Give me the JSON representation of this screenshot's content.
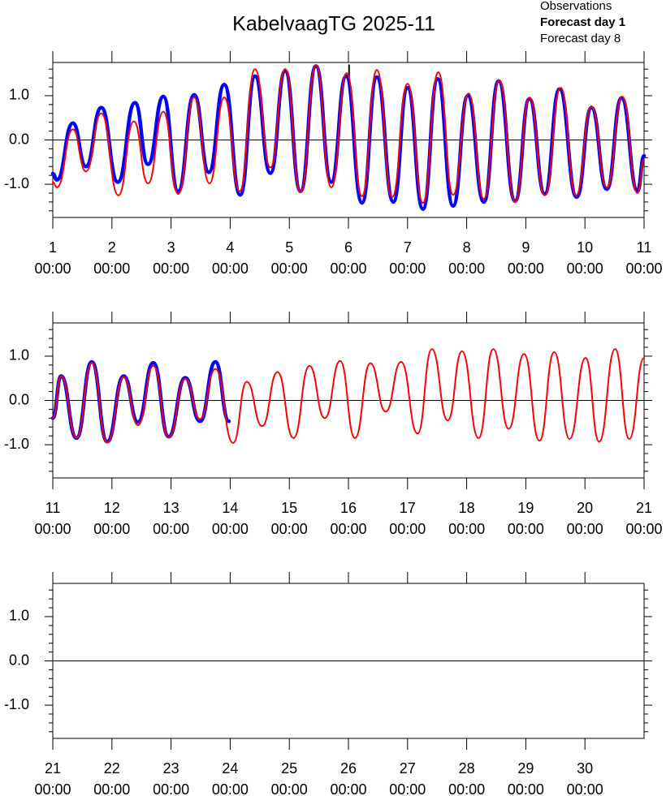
{
  "chart_data": [
    {
      "type": "line",
      "title": "KabelvaagTG 2025-11",
      "time_label": "00:00",
      "xlim": [
        1,
        11
      ],
      "xticks": [
        1,
        2,
        3,
        4,
        5,
        6,
        7,
        8,
        9,
        10,
        11
      ],
      "ylim": [
        -1.75,
        1.75
      ],
      "yticks": [
        {
          "value": -1,
          "label": "-1.0"
        },
        {
          "value": 0,
          "label": "0.0"
        },
        {
          "value": 1,
          "label": "1.0"
        }
      ],
      "yminorticks": [
        -1.6,
        -1.4,
        -1.2,
        -0.8,
        -0.6,
        -0.4,
        -0.2,
        0.2,
        0.4,
        0.6,
        0.8,
        1.2,
        1.4,
        1.6
      ],
      "zero_line": true,
      "series": [
        {
          "name": "Observations",
          "color": "#000000",
          "width": 2,
          "legend_weight": "normal",
          "x": [
            6.01,
            6.012
          ],
          "values": [
            1.69,
            1.42
          ]
        },
        {
          "name": "Forecast day 1",
          "color": "#0000ff",
          "width": 4.5,
          "legend_weight": "bold",
          "x": [
            1.0,
            1.07,
            1.34,
            1.56,
            1.82,
            2.1,
            2.39,
            2.61,
            2.87,
            3.12,
            3.39,
            3.64,
            3.9,
            4.17,
            4.42,
            4.68,
            4.93,
            5.19,
            5.45,
            5.71,
            5.96,
            6.23,
            6.48,
            6.76,
            7.0,
            7.26,
            7.51,
            7.77,
            8.02,
            8.29,
            8.54,
            8.82,
            9.06,
            9.32,
            9.57,
            9.86,
            10.11,
            10.37,
            10.62,
            10.89,
            11.0
          ],
          "values": [
            -0.76,
            -0.9,
            0.38,
            -0.6,
            0.73,
            -0.95,
            0.84,
            -0.55,
            0.98,
            -1.16,
            1.02,
            -0.73,
            1.25,
            -1.24,
            1.44,
            -0.75,
            1.56,
            -1.16,
            1.67,
            -0.95,
            1.44,
            -1.42,
            1.42,
            -1.4,
            1.18,
            -1.56,
            1.38,
            -1.49,
            1.0,
            -1.4,
            1.33,
            -1.38,
            0.93,
            -1.22,
            1.15,
            -1.29,
            0.73,
            -1.11,
            0.95,
            -1.15,
            -0.36
          ]
        },
        {
          "name": "Forecast day 8",
          "color": "#ff0000",
          "width": 2,
          "legend_weight": "normal",
          "x": [
            1.0,
            1.07,
            1.34,
            1.56,
            1.82,
            2.11,
            2.37,
            2.61,
            2.87,
            3.12,
            3.39,
            3.65,
            3.9,
            4.16,
            4.42,
            4.68,
            4.93,
            5.19,
            5.45,
            5.71,
            5.97,
            6.23,
            6.48,
            6.74,
            7.0,
            7.26,
            7.52,
            7.77,
            8.03,
            8.29,
            8.55,
            8.82,
            9.06,
            9.32,
            9.59,
            9.85,
            10.11,
            10.37,
            10.63,
            10.89,
            11.0
          ],
          "values": [
            -0.95,
            -1.07,
            0.24,
            -0.71,
            0.6,
            -1.25,
            0.42,
            -0.98,
            0.64,
            -1.22,
            0.96,
            -0.98,
            0.96,
            -1.16,
            1.6,
            -0.62,
            1.6,
            -1.18,
            1.69,
            -1.07,
            1.51,
            -1.27,
            1.58,
            -1.29,
            1.27,
            -1.42,
            1.53,
            -1.24,
            1.05,
            -1.33,
            1.35,
            -1.4,
            0.96,
            -1.25,
            1.18,
            -1.25,
            0.76,
            -1.07,
            0.98,
            -1.2,
            -0.44
          ]
        }
      ]
    },
    {
      "type": "line",
      "time_label": "00:00",
      "xlim": [
        11,
        21
      ],
      "xticks": [
        11,
        12,
        13,
        14,
        15,
        16,
        17,
        18,
        19,
        20,
        21
      ],
      "ylim": [
        -1.75,
        1.75
      ],
      "yticks": [
        {
          "value": -1,
          "label": "-1.0"
        },
        {
          "value": 0,
          "label": "0.0"
        },
        {
          "value": 1,
          "label": "1.0"
        }
      ],
      "yminorticks": [
        -1.6,
        -1.4,
        -1.2,
        -0.8,
        -0.6,
        -0.4,
        -0.2,
        0.2,
        0.4,
        0.6,
        0.8,
        1.2,
        1.4,
        1.6
      ],
      "zero_line": true,
      "series": [
        {
          "color": "#0000ff",
          "width": 4.5,
          "x": [
            11.0,
            11.14,
            11.4,
            11.66,
            11.92,
            12.2,
            12.44,
            12.7,
            12.96,
            13.24,
            13.49,
            13.75,
            13.98
          ],
          "values": [
            -0.4,
            0.55,
            -0.85,
            0.87,
            -0.93,
            0.55,
            -0.49,
            0.85,
            -0.82,
            0.51,
            -0.47,
            0.87,
            -0.47
          ]
        },
        {
          "color": "#ff0000",
          "width": 2,
          "x": [
            11.0,
            11.14,
            11.4,
            11.66,
            11.92,
            12.2,
            12.44,
            12.7,
            12.96,
            13.24,
            13.49,
            13.75,
            14.05,
            14.28,
            14.54,
            14.8,
            15.07,
            15.34,
            15.6,
            15.86,
            16.11,
            16.37,
            16.63,
            16.89,
            17.17,
            17.41,
            17.68,
            17.92,
            18.2,
            18.45,
            18.71,
            18.97,
            19.23,
            19.48,
            19.74,
            20.01,
            20.24,
            20.51,
            20.75,
            21.0
          ],
          "values": [
            -0.4,
            0.55,
            -0.84,
            0.85,
            -0.95,
            0.53,
            -0.56,
            0.78,
            -0.84,
            0.49,
            -0.42,
            0.71,
            -0.96,
            0.42,
            -0.58,
            0.64,
            -0.85,
            0.78,
            -0.4,
            0.89,
            -0.85,
            0.84,
            -0.25,
            0.87,
            -0.75,
            1.16,
            -0.45,
            1.11,
            -0.85,
            1.16,
            -0.64,
            1.05,
            -0.91,
            1.09,
            -0.87,
            0.96,
            -0.93,
            1.16,
            -0.87,
            0.96
          ]
        }
      ]
    },
    {
      "type": "line",
      "time_label": "00:00",
      "xlim": [
        21,
        31
      ],
      "xticks": [
        21,
        22,
        23,
        24,
        25,
        26,
        27,
        28,
        29,
        30
      ],
      "ylim": [
        -1.75,
        1.75
      ],
      "yticks": [
        {
          "value": -1,
          "label": "-1.0"
        },
        {
          "value": 0,
          "label": "0.0"
        },
        {
          "value": 1,
          "label": "1.0"
        }
      ],
      "yminorticks": [
        -1.6,
        -1.4,
        -1.2,
        -0.8,
        -0.6,
        -0.4,
        -0.2,
        0.2,
        0.4,
        0.6,
        0.8,
        1.2,
        1.4,
        1.6
      ],
      "zero_line": true,
      "series": []
    }
  ]
}
